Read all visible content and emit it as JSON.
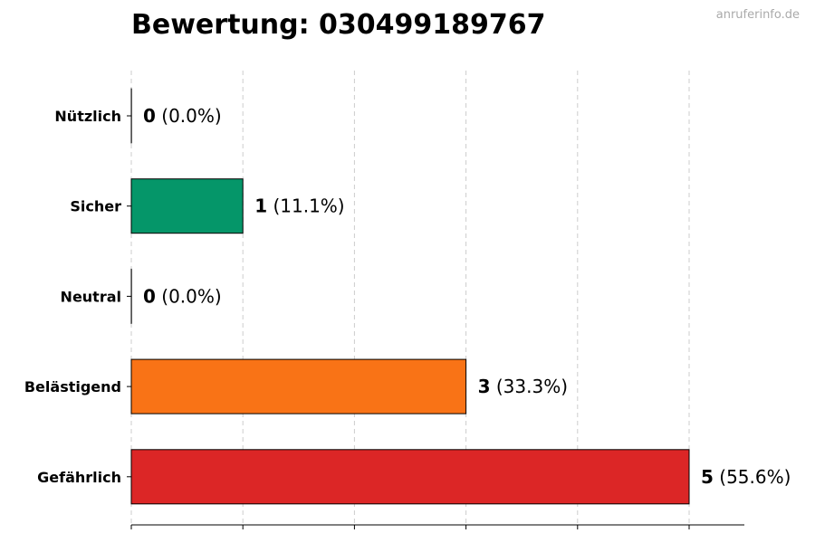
{
  "title": "Bewertung: 030499189767",
  "watermark": "anruferinfo.de",
  "colors": {
    "Nützlich": "#3b82f6",
    "Sicher": "#059669",
    "Neutral": "#9ca3af",
    "Belästigend": "#f97316",
    "Gefährlich": "#dc2626"
  },
  "chart_data": {
    "type": "bar",
    "orientation": "horizontal",
    "categories": [
      "Nützlich",
      "Sicher",
      "Neutral",
      "Belästigend",
      "Gefährlich"
    ],
    "values": [
      0,
      1,
      0,
      3,
      5
    ],
    "percent_labels": [
      "(0.0%)",
      "(11.1%)",
      "(0.0%)",
      "(33.3%)",
      "(55.6%)"
    ],
    "xlim": [
      0,
      5.5
    ],
    "grid": "vertical dashed",
    "xticks": [
      0,
      1,
      2,
      3,
      4,
      5
    ]
  }
}
